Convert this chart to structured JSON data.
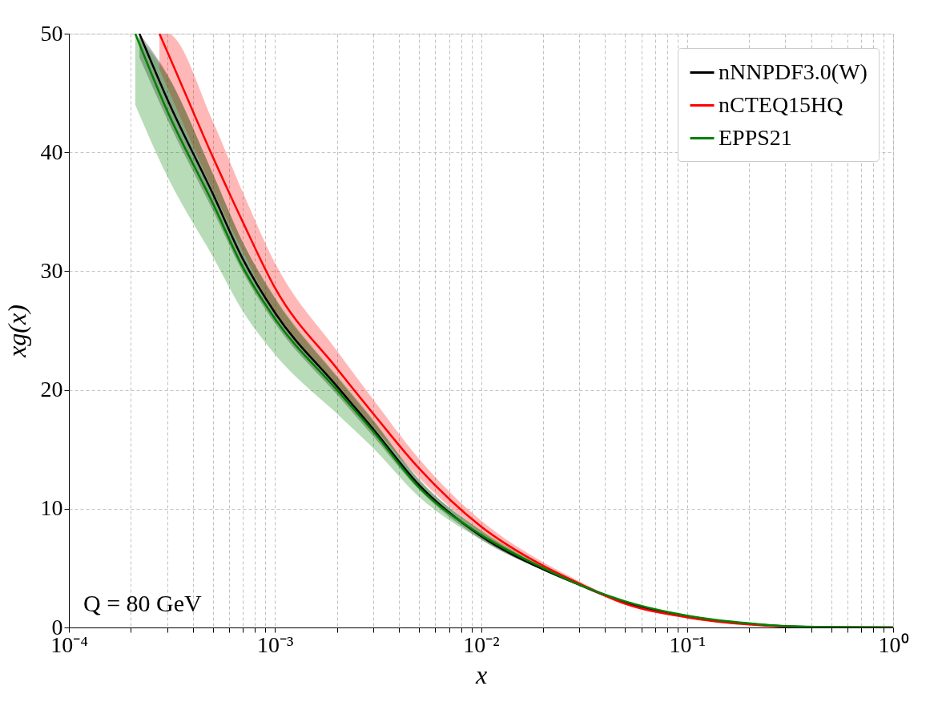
{
  "chart_data": {
    "type": "line",
    "xlabel": "x",
    "ylabel": "xg(x)",
    "log": "x",
    "xlim": [
      0.0001,
      1
    ],
    "ylim": [
      0,
      50
    ],
    "xticks": [
      {
        "value": 0.0001,
        "label": "10⁻⁴"
      },
      {
        "value": 0.0002,
        "label": null
      },
      {
        "value": 0.0003,
        "label": null
      },
      {
        "value": 0.0004,
        "label": null
      },
      {
        "value": 0.0005,
        "label": null
      },
      {
        "value": 0.0006,
        "label": null
      },
      {
        "value": 0.0007,
        "label": null
      },
      {
        "value": 0.0008,
        "label": null
      },
      {
        "value": 0.0009,
        "label": null
      },
      {
        "value": 0.001,
        "label": "10⁻³"
      },
      {
        "value": 0.002,
        "label": null
      },
      {
        "value": 0.003,
        "label": null
      },
      {
        "value": 0.004,
        "label": null
      },
      {
        "value": 0.005,
        "label": null
      },
      {
        "value": 0.006,
        "label": null
      },
      {
        "value": 0.007,
        "label": null
      },
      {
        "value": 0.008,
        "label": null
      },
      {
        "value": 0.009,
        "label": null
      },
      {
        "value": 0.01,
        "label": "10⁻²"
      },
      {
        "value": 0.02,
        "label": null
      },
      {
        "value": 0.03,
        "label": null
      },
      {
        "value": 0.04,
        "label": null
      },
      {
        "value": 0.05,
        "label": null
      },
      {
        "value": 0.06,
        "label": null
      },
      {
        "value": 0.07,
        "label": null
      },
      {
        "value": 0.08,
        "label": null
      },
      {
        "value": 0.09,
        "label": null
      },
      {
        "value": 0.1,
        "label": "10⁻¹"
      },
      {
        "value": 0.2,
        "label": null
      },
      {
        "value": 0.3,
        "label": null
      },
      {
        "value": 0.4,
        "label": null
      },
      {
        "value": 0.5,
        "label": null
      },
      {
        "value": 0.6,
        "label": null
      },
      {
        "value": 0.7,
        "label": null
      },
      {
        "value": 0.8,
        "label": null
      },
      {
        "value": 0.9,
        "label": null
      },
      {
        "value": 1,
        "label": "10⁰"
      }
    ],
    "yticks": [
      0,
      10,
      20,
      30,
      40,
      50
    ],
    "grid": true,
    "legend": "top right",
    "line_style": "solid",
    "annotations": [
      "Q = 80 GeV"
    ],
    "series": [
      {
        "name": "nNNPDF3.0(W)",
        "color": "#000000",
        "x": [
          0.00022,
          0.0003,
          0.0005,
          0.0007,
          0.001,
          0.002,
          0.003,
          0.005,
          0.01,
          0.02,
          0.03,
          0.05,
          0.1,
          0.2,
          0.3,
          0.5,
          1
        ],
        "values": [
          50,
          44.5,
          36.5,
          31,
          26.5,
          20.3,
          16.7,
          12.0,
          7.7,
          4.9,
          3.6,
          2.1,
          0.95,
          0.3,
          0.1,
          0.02,
          0
        ],
        "lower": [
          48,
          42.8,
          35.1,
          29.9,
          25.6,
          19.6,
          16.1,
          11.6,
          7.4,
          4.8,
          3.5,
          2.0,
          0.9,
          0.28,
          0.09,
          0.01,
          0
        ],
        "upper": [
          50,
          46.6,
          38.2,
          32.4,
          27.7,
          21.1,
          17.4,
          12.5,
          8.1,
          5.1,
          3.7,
          2.2,
          1.0,
          0.33,
          0.12,
          0.03,
          0
        ]
      },
      {
        "name": "nCTEQ15HQ",
        "color": "#ff0000",
        "x": [
          0.000275,
          0.0003,
          0.0005,
          0.0007,
          0.001,
          0.002,
          0.003,
          0.005,
          0.01,
          0.02,
          0.03,
          0.05,
          0.1,
          0.2,
          0.3,
          0.5,
          1
        ],
        "values": [
          50,
          48.5,
          39.6,
          34.1,
          28.6,
          21.8,
          18.0,
          13.4,
          8.5,
          5.2,
          3.7,
          2.0,
          0.85,
          0.25,
          0.08,
          0.01,
          0
        ],
        "lower": [
          47,
          45.5,
          36.8,
          31.6,
          26.5,
          20.3,
          16.9,
          12.6,
          8.0,
          4.9,
          3.5,
          1.9,
          0.8,
          0.22,
          0.06,
          0,
          0
        ],
        "upper": [
          50,
          50,
          42.6,
          36.6,
          30.7,
          23.3,
          19.2,
          14.2,
          9.0,
          5.5,
          3.9,
          2.1,
          0.9,
          0.28,
          0.1,
          0.02,
          0
        ]
      },
      {
        "name": "EPPS21",
        "color": "#008000",
        "x": [
          0.00021,
          0.0003,
          0.0005,
          0.0007,
          0.001,
          0.002,
          0.003,
          0.005,
          0.01,
          0.02,
          0.03,
          0.05,
          0.1,
          0.2,
          0.3,
          0.5,
          1
        ],
        "values": [
          50,
          43.5,
          35.7,
          30.3,
          26.0,
          20.0,
          16.5,
          11.8,
          7.8,
          5.0,
          3.6,
          2.2,
          1.0,
          0.35,
          0.12,
          0.03,
          0
        ],
        "lower": [
          44,
          38,
          31.2,
          26.6,
          23.0,
          18.0,
          15.1,
          11.0,
          7.4,
          4.8,
          3.5,
          2.1,
          0.95,
          0.32,
          0.1,
          0.02,
          0
        ],
        "upper": [
          50,
          46.5,
          38.2,
          32.4,
          27.8,
          21.2,
          17.5,
          12.4,
          8.2,
          5.2,
          3.7,
          2.3,
          1.05,
          0.38,
          0.14,
          0.04,
          0
        ]
      }
    ]
  }
}
